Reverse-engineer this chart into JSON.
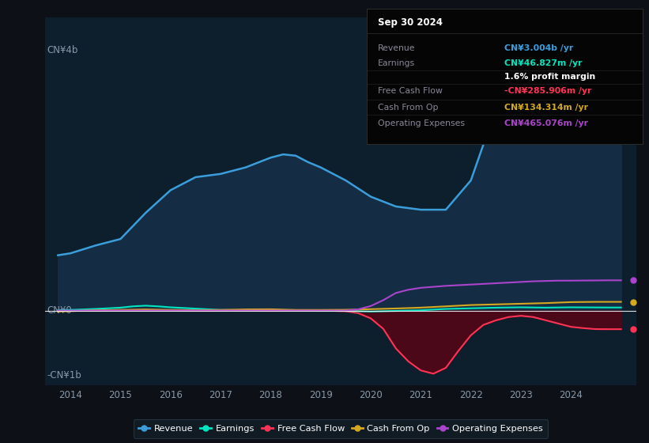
{
  "bg_color": "#0d1117",
  "chart_bg": "#0d1f2d",
  "title": "Sep 30 2024",
  "ylabel_top": "CN¥4b",
  "ylabel_zero": "CN¥0",
  "ylabel_neg": "-CN¥1b",
  "xlim": [
    2013.5,
    2025.3
  ],
  "ylim": [
    -1150000000.0,
    4500000000.0
  ],
  "years": [
    2014,
    2015,
    2016,
    2017,
    2018,
    2019,
    2020,
    2021,
    2022,
    2023,
    2024,
    2025
  ],
  "info_box": {
    "title": "Sep 30 2024",
    "title_color": "#ffffff",
    "bg": "#050505",
    "border": "#2a2a2a",
    "rows": [
      {
        "label": "Revenue",
        "value": "CN¥3.004b /yr",
        "color": "#3b9edb"
      },
      {
        "label": "Earnings",
        "value": "CN¥46.827m /yr",
        "color": "#00e5c0"
      },
      {
        "label": "",
        "value": "1.6% profit margin",
        "color": "#ffffff"
      },
      {
        "label": "Free Cash Flow",
        "value": "-CN¥285.906m /yr",
        "color": "#ff3355"
      },
      {
        "label": "Cash From Op",
        "value": "CN¥134.314m /yr",
        "color": "#d4a820"
      },
      {
        "label": "Operating Expenses",
        "value": "CN¥465.076m /yr",
        "color": "#aa44cc"
      }
    ]
  },
  "revenue": {
    "x": [
      2013.75,
      2014.0,
      2014.5,
      2015.0,
      2015.5,
      2016.0,
      2016.5,
      2017.0,
      2017.5,
      2018.0,
      2018.25,
      2018.5,
      2018.75,
      2019.0,
      2019.5,
      2020.0,
      2020.5,
      2021.0,
      2021.5,
      2022.0,
      2022.25,
      2022.5,
      2022.75,
      2023.0,
      2023.25,
      2023.5,
      2023.75,
      2024.0,
      2024.25,
      2024.5,
      2024.75,
      2025.0
    ],
    "y": [
      850000000.0,
      880000000.0,
      1000000000.0,
      1100000000.0,
      1500000000.0,
      1850000000.0,
      2050000000.0,
      2100000000.0,
      2200000000.0,
      2350000000.0,
      2400000000.0,
      2380000000.0,
      2280000000.0,
      2200000000.0,
      2000000000.0,
      1750000000.0,
      1600000000.0,
      1550000000.0,
      1550000000.0,
      2000000000.0,
      2550000000.0,
      3250000000.0,
      3820000000.0,
      4050000000.0,
      3900000000.0,
      3550000000.0,
      3350000000.0,
      3200000000.0,
      3100000000.0,
      3000000000.0,
      3000000000.0,
      3000000000.0
    ],
    "color": "#3b9edb",
    "fill_color": "#152d44",
    "label": "Revenue",
    "lw": 1.8
  },
  "earnings": {
    "x": [
      2013.75,
      2014.0,
      2014.5,
      2015.0,
      2015.25,
      2015.5,
      2015.75,
      2016.0,
      2016.5,
      2017.0,
      2017.5,
      2018.0,
      2018.5,
      2019.0,
      2019.5,
      2020.0,
      2020.5,
      2021.0,
      2021.5,
      2022.0,
      2022.5,
      2023.0,
      2023.5,
      2024.0,
      2024.5,
      2024.75,
      2025.0
    ],
    "y": [
      5000000.0,
      10000000.0,
      25000000.0,
      45000000.0,
      65000000.0,
      75000000.0,
      65000000.0,
      50000000.0,
      30000000.0,
      10000000.0,
      5000000.0,
      10000000.0,
      5000000.0,
      2000000.0,
      -5000000.0,
      -15000000.0,
      -5000000.0,
      5000000.0,
      25000000.0,
      35000000.0,
      45000000.0,
      50000000.0,
      45000000.0,
      50000000.0,
      48000000.0,
      47000000.0,
      47000000.0
    ],
    "color": "#00e5c0",
    "label": "Earnings",
    "lw": 1.5
  },
  "free_cash_flow": {
    "x": [
      2013.75,
      2014.0,
      2014.5,
      2015.0,
      2015.5,
      2016.0,
      2016.5,
      2017.0,
      2017.5,
      2018.0,
      2018.5,
      2019.0,
      2019.5,
      2019.75,
      2020.0,
      2020.25,
      2020.5,
      2020.75,
      2021.0,
      2021.25,
      2021.5,
      2021.75,
      2022.0,
      2022.25,
      2022.5,
      2022.75,
      2023.0,
      2023.25,
      2023.5,
      2023.75,
      2024.0,
      2024.25,
      2024.5,
      2024.75,
      2025.0
    ],
    "y": [
      0.0,
      -5000000.0,
      -2000000.0,
      2000000.0,
      5000000.0,
      2000000.0,
      -5000000.0,
      -2000000.0,
      2000000.0,
      -5000000.0,
      2000000.0,
      2000000.0,
      -10000000.0,
      -40000000.0,
      -120000000.0,
      -280000000.0,
      -580000000.0,
      -780000000.0,
      -920000000.0,
      -970000000.0,
      -880000000.0,
      -620000000.0,
      -380000000.0,
      -220000000.0,
      -150000000.0,
      -100000000.0,
      -80000000.0,
      -100000000.0,
      -150000000.0,
      -200000000.0,
      -250000000.0,
      -270000000.0,
      -285000000.0,
      -286000000.0,
      -286000000.0
    ],
    "color": "#ff3355",
    "fill_color": "#4a0818",
    "label": "Free Cash Flow",
    "lw": 1.5
  },
  "cash_from_op": {
    "x": [
      2013.75,
      2014.0,
      2014.5,
      2015.0,
      2015.5,
      2016.0,
      2016.5,
      2017.0,
      2017.5,
      2018.0,
      2018.5,
      2019.0,
      2019.5,
      2020.0,
      2020.5,
      2021.0,
      2021.5,
      2022.0,
      2022.5,
      2023.0,
      2023.5,
      2024.0,
      2024.25,
      2024.5,
      2024.75,
      2025.0
    ],
    "y": [
      -15000000.0,
      -8000000.0,
      5000000.0,
      10000000.0,
      18000000.0,
      10000000.0,
      5000000.0,
      10000000.0,
      18000000.0,
      20000000.0,
      10000000.0,
      10000000.0,
      12000000.0,
      22000000.0,
      32000000.0,
      45000000.0,
      65000000.0,
      85000000.0,
      95000000.0,
      105000000.0,
      115000000.0,
      130000000.0,
      132000000.0,
      134000000.0,
      134000000.0,
      134000000.0
    ],
    "color": "#d4a820",
    "label": "Cash From Op",
    "lw": 1.5
  },
  "operating_expenses": {
    "x": [
      2013.75,
      2014.0,
      2014.5,
      2015.0,
      2015.5,
      2016.0,
      2016.5,
      2017.0,
      2017.5,
      2018.0,
      2018.5,
      2019.0,
      2019.5,
      2019.75,
      2020.0,
      2020.25,
      2020.5,
      2020.75,
      2021.0,
      2021.5,
      2022.0,
      2022.5,
      2023.0,
      2023.25,
      2023.5,
      2023.75,
      2024.0,
      2024.25,
      2024.5,
      2024.75,
      2025.0
    ],
    "y": [
      0.0,
      0.0,
      0.0,
      0.0,
      0.0,
      0.0,
      0.0,
      0.0,
      0.0,
      0.0,
      0.0,
      0.0,
      0.0,
      20000000.0,
      70000000.0,
      160000000.0,
      270000000.0,
      320000000.0,
      350000000.0,
      380000000.0,
      400000000.0,
      420000000.0,
      440000000.0,
      450000000.0,
      455000000.0,
      460000000.0,
      460000000.0,
      462000000.0,
      463000000.0,
      465000000.0,
      465000000.0
    ],
    "color": "#aa44cc",
    "label": "Operating Expenses",
    "lw": 1.5
  },
  "legend": {
    "items": [
      {
        "label": "Revenue",
        "color": "#3b9edb"
      },
      {
        "label": "Earnings",
        "color": "#00e5c0"
      },
      {
        "label": "Free Cash Flow",
        "color": "#ff3355"
      },
      {
        "label": "Cash From Op",
        "color": "#d4a820"
      },
      {
        "label": "Operating Expenses",
        "color": "#aa44cc"
      }
    ],
    "bg": "#131e28",
    "border": "#2a3a4a"
  }
}
